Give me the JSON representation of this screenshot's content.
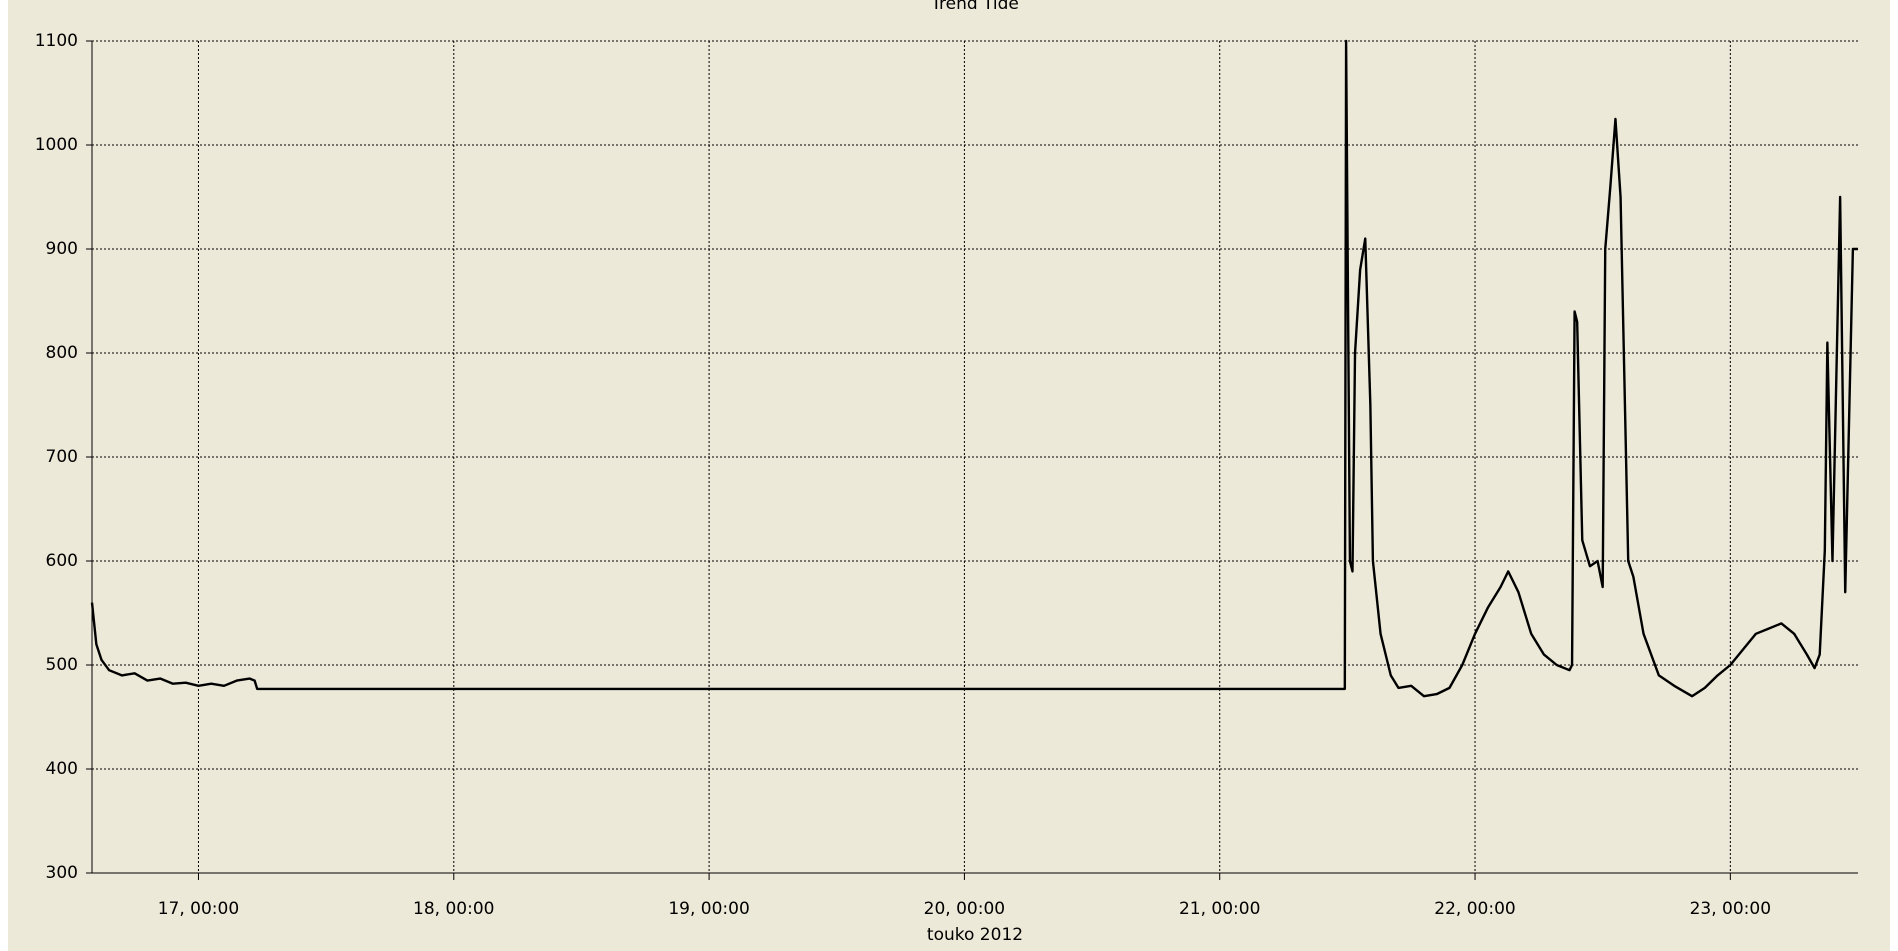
{
  "chart_data": {
    "type": "line",
    "title": "Trend Tide",
    "xlabel": "touko 2012",
    "color": "#000000",
    "grid": true,
    "xlim": [
      16.583,
      23.5
    ],
    "ylim": [
      300,
      1100
    ],
    "xticks": [
      {
        "value": 17,
        "label": "17, 00:00"
      },
      {
        "value": 18,
        "label": "18, 00:00"
      },
      {
        "value": 19,
        "label": "19, 00:00"
      },
      {
        "value": 20,
        "label": "20, 00:00"
      },
      {
        "value": 21,
        "label": "21, 00:00"
      },
      {
        "value": 22,
        "label": "22, 00:00"
      },
      {
        "value": 23,
        "label": "23, 00:00"
      }
    ],
    "yticks": [
      300,
      400,
      500,
      600,
      700,
      800,
      900,
      1000,
      1100
    ],
    "x": [
      16.583,
      16.6,
      16.62,
      16.65,
      16.7,
      16.75,
      16.8,
      16.85,
      16.9,
      16.95,
      17.0,
      17.05,
      17.1,
      17.15,
      17.2,
      17.22,
      17.23,
      21.49,
      21.495,
      21.51,
      21.52,
      21.53,
      21.55,
      21.57,
      21.59,
      21.6,
      21.63,
      21.67,
      21.7,
      21.75,
      21.8,
      21.85,
      21.9,
      21.95,
      22.0,
      22.05,
      22.1,
      22.13,
      22.17,
      22.22,
      22.27,
      22.32,
      22.37,
      22.38,
      22.39,
      22.4,
      22.42,
      22.45,
      22.48,
      22.5,
      22.51,
      22.53,
      22.55,
      22.57,
      22.6,
      22.62,
      22.66,
      22.72,
      22.78,
      22.85,
      22.9,
      22.95,
      23.0,
      23.05,
      23.1,
      23.15,
      23.2,
      23.25,
      23.3,
      23.33,
      23.35,
      23.37,
      23.38,
      23.4,
      23.43,
      23.45,
      23.48,
      23.5
    ],
    "values": [
      560,
      520,
      505,
      495,
      490,
      492,
      485,
      487,
      482,
      483,
      480,
      482,
      480,
      485,
      487,
      485,
      477,
      477,
      1100,
      600,
      590,
      800,
      880,
      910,
      750,
      600,
      530,
      490,
      478,
      480,
      470,
      472,
      478,
      500,
      530,
      555,
      575,
      590,
      570,
      530,
      510,
      500,
      495,
      500,
      840,
      830,
      620,
      595,
      600,
      575,
      900,
      960,
      1025,
      950,
      600,
      585,
      530,
      490,
      480,
      470,
      478,
      490,
      500,
      515,
      530,
      535,
      540,
      530,
      510,
      497,
      510,
      610,
      810,
      600,
      950,
      570,
      900,
      900
    ]
  }
}
